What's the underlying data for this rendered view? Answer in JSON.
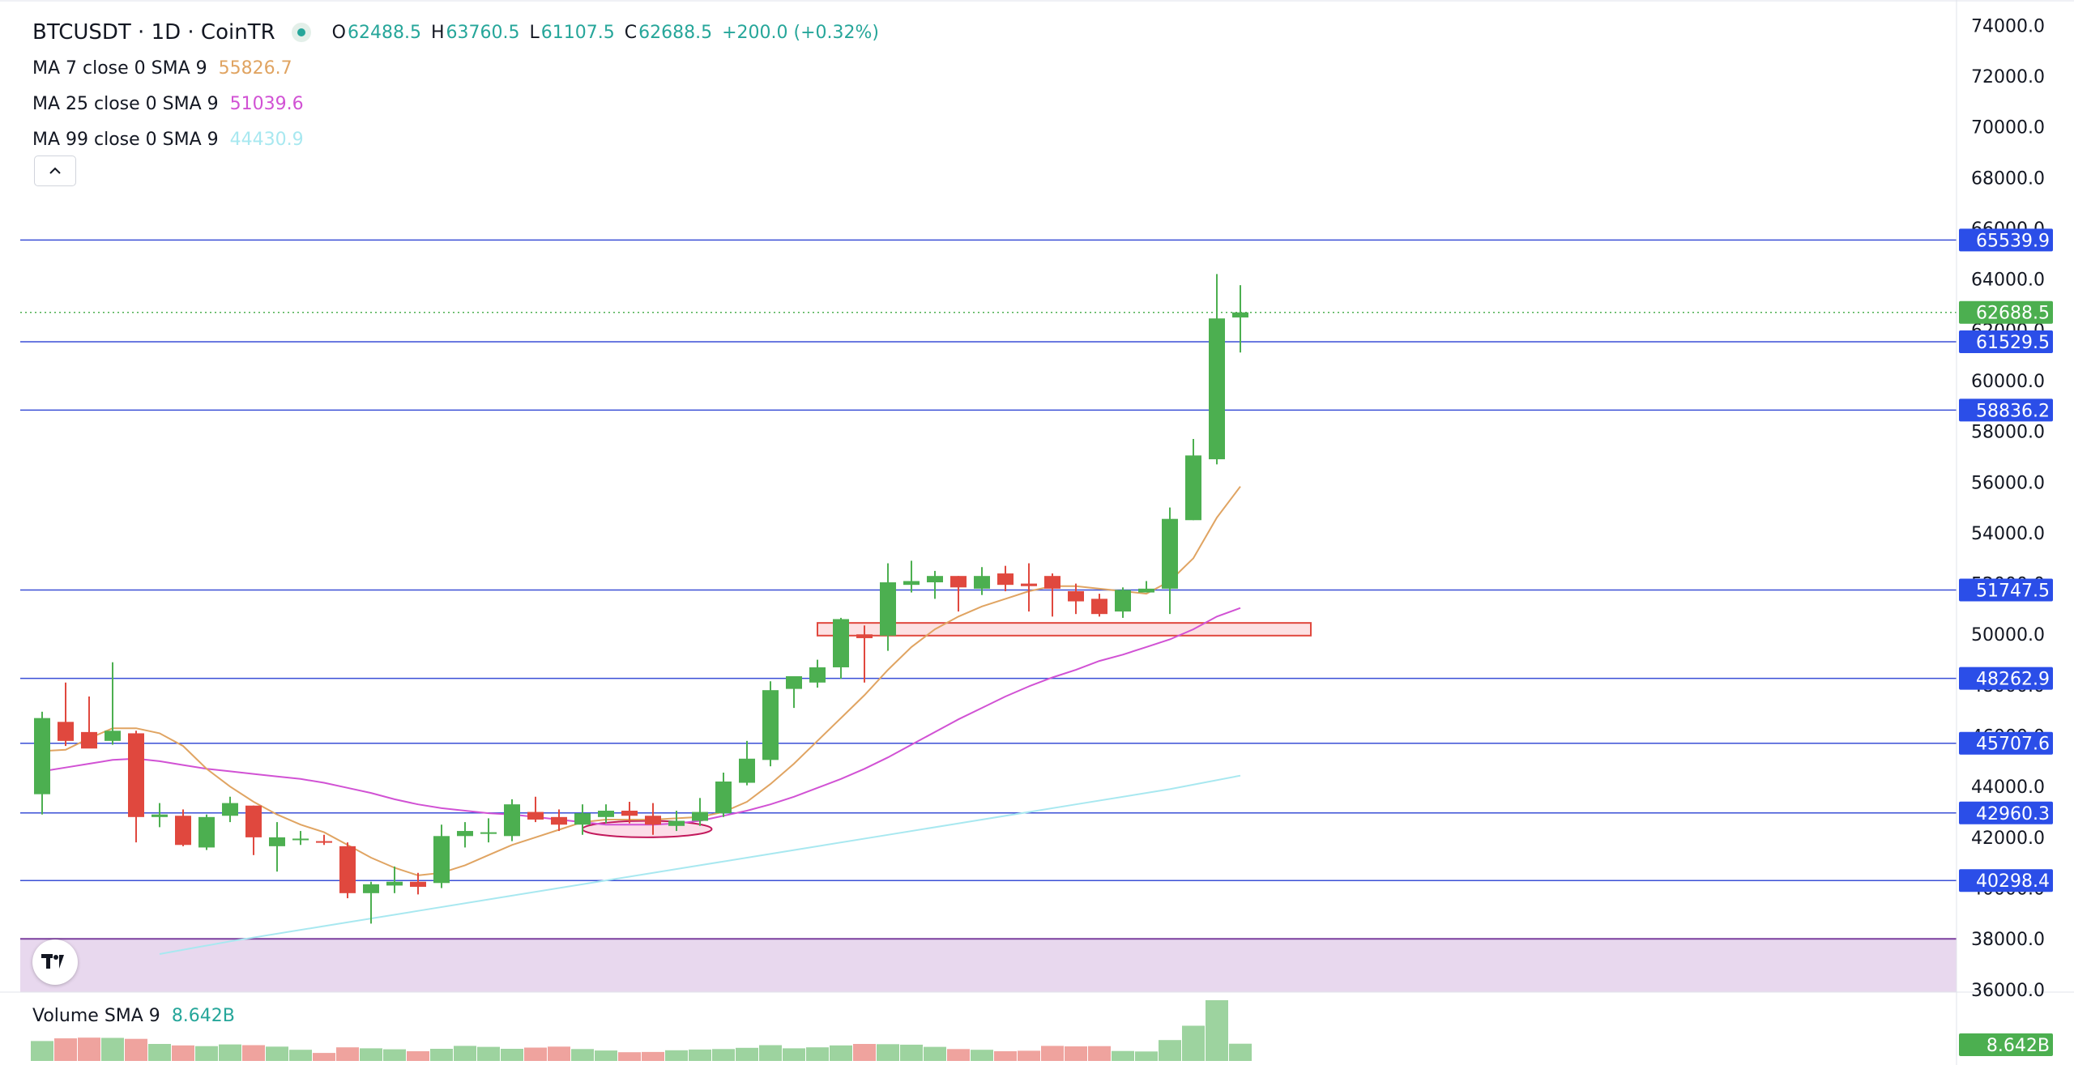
{
  "header": {
    "symbol": "BTCUSDT · 1D · CoinTR",
    "o_label": "O",
    "o_value": "62488.5",
    "h_label": "H",
    "h_value": "63760.5",
    "l_label": "L",
    "l_value": "61107.5",
    "c_label": "C",
    "c_value": "62688.5",
    "change": "+200.0 (+0.32%)"
  },
  "indicators": [
    {
      "label": "MA 7 close 0 SMA 9",
      "value": "55826.7",
      "color": "#e0a462"
    },
    {
      "label": "MA 25 close 0 SMA 9",
      "value": "51039.6",
      "color": "#d152d4"
    },
    {
      "label": "MA 99 close 0 SMA 9",
      "value": "44430.9",
      "color": "#a8e8f0"
    }
  ],
  "collapse_icon": "chevron-up-icon",
  "volume": {
    "label": "Volume SMA 9",
    "value": "8.642B",
    "axis_tag": "8.642B"
  },
  "logo_icon": "tradingview-logo-icon",
  "colors": {
    "up": "#4caf50",
    "down": "#e0483e",
    "level_line": "#3a4fd6",
    "tag_bg": "#2b4ee8",
    "price_tag_bg": "#4caf50",
    "zone_fill": "#e8d8ee"
  },
  "chart_data": {
    "type": "candlestick",
    "symbol": "BTCUSDT",
    "interval": "1D",
    "y_axis": {
      "ylim": [
        35900,
        75000
      ],
      "ticks": [
        36000,
        38000,
        40000,
        42000,
        44000,
        46000,
        48000,
        50000,
        52000,
        54000,
        56000,
        58000,
        60000,
        62000,
        64000,
        66000,
        68000,
        70000,
        72000,
        74000
      ],
      "position": "right"
    },
    "y_tick_labels": [
      "36000.0",
      "38000.0",
      "40000.0",
      "42000.0",
      "44000.0",
      "46000.0",
      "48000.0",
      "50000.0",
      "52000.0",
      "54000.0",
      "56000.0",
      "58000.0",
      "60000.0",
      "62000.0",
      "64000.0",
      "66000.0",
      "68000.0",
      "70000.0",
      "72000.0",
      "74000.0"
    ],
    "candles": [
      [
        43700,
        46950,
        42900,
        46700
      ],
      [
        46550,
        48100,
        45600,
        45800
      ],
      [
        46150,
        47550,
        45550,
        45500
      ],
      [
        45800,
        48900,
        45650,
        46200
      ],
      [
        46100,
        46200,
        41800,
        42800
      ],
      [
        42800,
        43350,
        42400,
        42900
      ],
      [
        42850,
        43100,
        41650,
        41700
      ],
      [
        41600,
        42900,
        41500,
        42800
      ],
      [
        42850,
        43600,
        42600,
        43350
      ],
      [
        43250,
        43250,
        41300,
        42000
      ],
      [
        41650,
        42600,
        40650,
        42000
      ],
      [
        41950,
        42250,
        41700,
        41950
      ],
      [
        41850,
        42100,
        41700,
        41800
      ],
      [
        41650,
        41800,
        39600,
        39800
      ],
      [
        39800,
        40250,
        38600,
        40150
      ],
      [
        40100,
        40850,
        39800,
        40250
      ],
      [
        40250,
        40600,
        39750,
        40050
      ],
      [
        40200,
        42500,
        40000,
        42050
      ],
      [
        42050,
        42600,
        41600,
        42250
      ],
      [
        42150,
        42750,
        41800,
        42200
      ],
      [
        42050,
        43500,
        41850,
        43300
      ],
      [
        43000,
        43600,
        42600,
        42700
      ],
      [
        42800,
        43100,
        42250,
        42500
      ],
      [
        42500,
        43300,
        42100,
        42950
      ],
      [
        42800,
        43300,
        42550,
        43050
      ],
      [
        43050,
        43400,
        42550,
        42850
      ],
      [
        42850,
        43350,
        42100,
        42500
      ],
      [
        42450,
        43050,
        42250,
        42650
      ],
      [
        42650,
        43550,
        42450,
        43000
      ],
      [
        42950,
        44550,
        42800,
        44200
      ],
      [
        44150,
        45800,
        44050,
        45100
      ],
      [
        45050,
        48150,
        44800,
        47800
      ],
      [
        47850,
        48300,
        47100,
        48350
      ],
      [
        48100,
        49000,
        47900,
        48700
      ],
      [
        48700,
        50650,
        48250,
        50600
      ],
      [
        50000,
        50350,
        48100,
        49850
      ],
      [
        49950,
        52800,
        49350,
        52050
      ],
      [
        51950,
        52900,
        51650,
        52100
      ],
      [
        52050,
        52500,
        51400,
        52300
      ],
      [
        52300,
        52300,
        50900,
        51850
      ],
      [
        51800,
        52650,
        51550,
        52300
      ],
      [
        52400,
        52700,
        51700,
        51950
      ],
      [
        52000,
        52800,
        50900,
        51900
      ],
      [
        52300,
        52400,
        50700,
        51800
      ],
      [
        51700,
        52000,
        50800,
        51300
      ],
      [
        51400,
        51600,
        50700,
        50800
      ],
      [
        50900,
        51850,
        50650,
        51750
      ],
      [
        51650,
        52100,
        51650,
        51800
      ],
      [
        51800,
        55000,
        50800,
        54550
      ],
      [
        54500,
        57700,
        54500,
        57050
      ],
      [
        56900,
        64200,
        56700,
        62450
      ],
      [
        62488.5,
        63760.5,
        61107.5,
        62688.5
      ]
    ],
    "volume": [
      8.2,
      9.3,
      9.6,
      9.5,
      9.1,
      7.0,
      6.4,
      6.1,
      6.8,
      6.5,
      5.9,
      4.6,
      3.3,
      5.6,
      5.2,
      4.8,
      4.0,
      5.0,
      6.2,
      5.8,
      5.0,
      5.5,
      5.9,
      4.9,
      4.3,
      3.6,
      3.7,
      4.4,
      4.7,
      4.9,
      5.4,
      6.5,
      5.2,
      5.6,
      6.4,
      7.0,
      6.9,
      6.7,
      5.8,
      4.9,
      4.6,
      4.0,
      4.2,
      6.2,
      6.0,
      6.1,
      4.1,
      3.9,
      8.6,
      14.5,
      25.0,
      7.1
    ],
    "ma7": [
      [
        0,
        45400
      ],
      [
        1,
        45450
      ],
      [
        2,
        45900
      ],
      [
        3,
        46300
      ],
      [
        4,
        46300
      ],
      [
        5,
        46100
      ],
      [
        6,
        45600
      ],
      [
        7,
        44700
      ],
      [
        8,
        44000
      ],
      [
        9,
        43400
      ],
      [
        10,
        42900
      ],
      [
        11,
        42500
      ],
      [
        12,
        42200
      ],
      [
        13,
        41700
      ],
      [
        14,
        41200
      ],
      [
        15,
        40800
      ],
      [
        16,
        40500
      ],
      [
        17,
        40600
      ],
      [
        18,
        40900
      ],
      [
        19,
        41300
      ],
      [
        20,
        41700
      ],
      [
        21,
        42000
      ],
      [
        22,
        42300
      ],
      [
        23,
        42600
      ],
      [
        24,
        42700
      ],
      [
        25,
        42700
      ],
      [
        26,
        42700
      ],
      [
        27,
        42750
      ],
      [
        28,
        42800
      ],
      [
        29,
        43000
      ],
      [
        30,
        43400
      ],
      [
        31,
        44100
      ],
      [
        32,
        44900
      ],
      [
        33,
        45800
      ],
      [
        34,
        46700
      ],
      [
        35,
        47600
      ],
      [
        36,
        48600
      ],
      [
        37,
        49500
      ],
      [
        38,
        50200
      ],
      [
        39,
        50700
      ],
      [
        40,
        51100
      ],
      [
        41,
        51400
      ],
      [
        42,
        51700
      ],
      [
        43,
        51900
      ],
      [
        44,
        51900
      ],
      [
        45,
        51800
      ],
      [
        46,
        51700
      ],
      [
        47,
        51600
      ],
      [
        48,
        52100
      ],
      [
        49,
        53000
      ],
      [
        50,
        54600
      ],
      [
        51,
        55827
      ]
    ],
    "ma25": [
      [
        0,
        44600
      ],
      [
        1,
        44750
      ],
      [
        2,
        44900
      ],
      [
        3,
        45050
      ],
      [
        4,
        45100
      ],
      [
        5,
        45000
      ],
      [
        6,
        44850
      ],
      [
        7,
        44700
      ],
      [
        8,
        44600
      ],
      [
        9,
        44500
      ],
      [
        10,
        44400
      ],
      [
        11,
        44300
      ],
      [
        12,
        44150
      ],
      [
        13,
        43950
      ],
      [
        14,
        43750
      ],
      [
        15,
        43500
      ],
      [
        16,
        43300
      ],
      [
        17,
        43150
      ],
      [
        18,
        43050
      ],
      [
        19,
        42950
      ],
      [
        20,
        42900
      ],
      [
        21,
        42800
      ],
      [
        22,
        42700
      ],
      [
        23,
        42600
      ],
      [
        24,
        42500
      ],
      [
        25,
        42500
      ],
      [
        26,
        42500
      ],
      [
        27,
        42550
      ],
      [
        28,
        42650
      ],
      [
        29,
        42850
      ],
      [
        30,
        43050
      ],
      [
        31,
        43300
      ],
      [
        32,
        43600
      ],
      [
        33,
        43950
      ],
      [
        34,
        44300
      ],
      [
        35,
        44700
      ],
      [
        36,
        45150
      ],
      [
        37,
        45650
      ],
      [
        38,
        46150
      ],
      [
        39,
        46650
      ],
      [
        40,
        47100
      ],
      [
        41,
        47550
      ],
      [
        42,
        47950
      ],
      [
        43,
        48300
      ],
      [
        44,
        48600
      ],
      [
        45,
        48950
      ],
      [
        46,
        49200
      ],
      [
        47,
        49500
      ],
      [
        48,
        49800
      ],
      [
        49,
        50200
      ],
      [
        50,
        50700
      ],
      [
        51,
        51040
      ]
    ],
    "ma99": [
      [
        5,
        37400
      ],
      [
        8,
        37900
      ],
      [
        12,
        38500
      ],
      [
        16,
        39100
      ],
      [
        20,
        39700
      ],
      [
        24,
        40300
      ],
      [
        28,
        40900
      ],
      [
        32,
        41500
      ],
      [
        36,
        42100
      ],
      [
        40,
        42700
      ],
      [
        44,
        43300
      ],
      [
        48,
        43900
      ],
      [
        51,
        44431
      ]
    ],
    "levels": [
      65539.9,
      61529.5,
      58836.2,
      51747.5,
      48262.9,
      45707.6,
      42960.3,
      40298.4
    ],
    "level_labels": [
      "65539.9",
      "61529.5",
      "58836.2",
      "51747.5",
      "48262.9",
      "45707.6",
      "42960.3",
      "40298.4"
    ],
    "last_price": 62688.5,
    "last_price_label": "62688.5",
    "shaded_zone": [
      35900,
      38000
    ],
    "annotations": [
      {
        "shape": "rect",
        "x_range": [
          33.0,
          54.0
        ],
        "y_range": [
          49950,
          50450
        ]
      },
      {
        "shape": "ellipse",
        "x_range": [
          23.0,
          28.5
        ],
        "y_range": [
          42000,
          42650
        ]
      }
    ]
  }
}
